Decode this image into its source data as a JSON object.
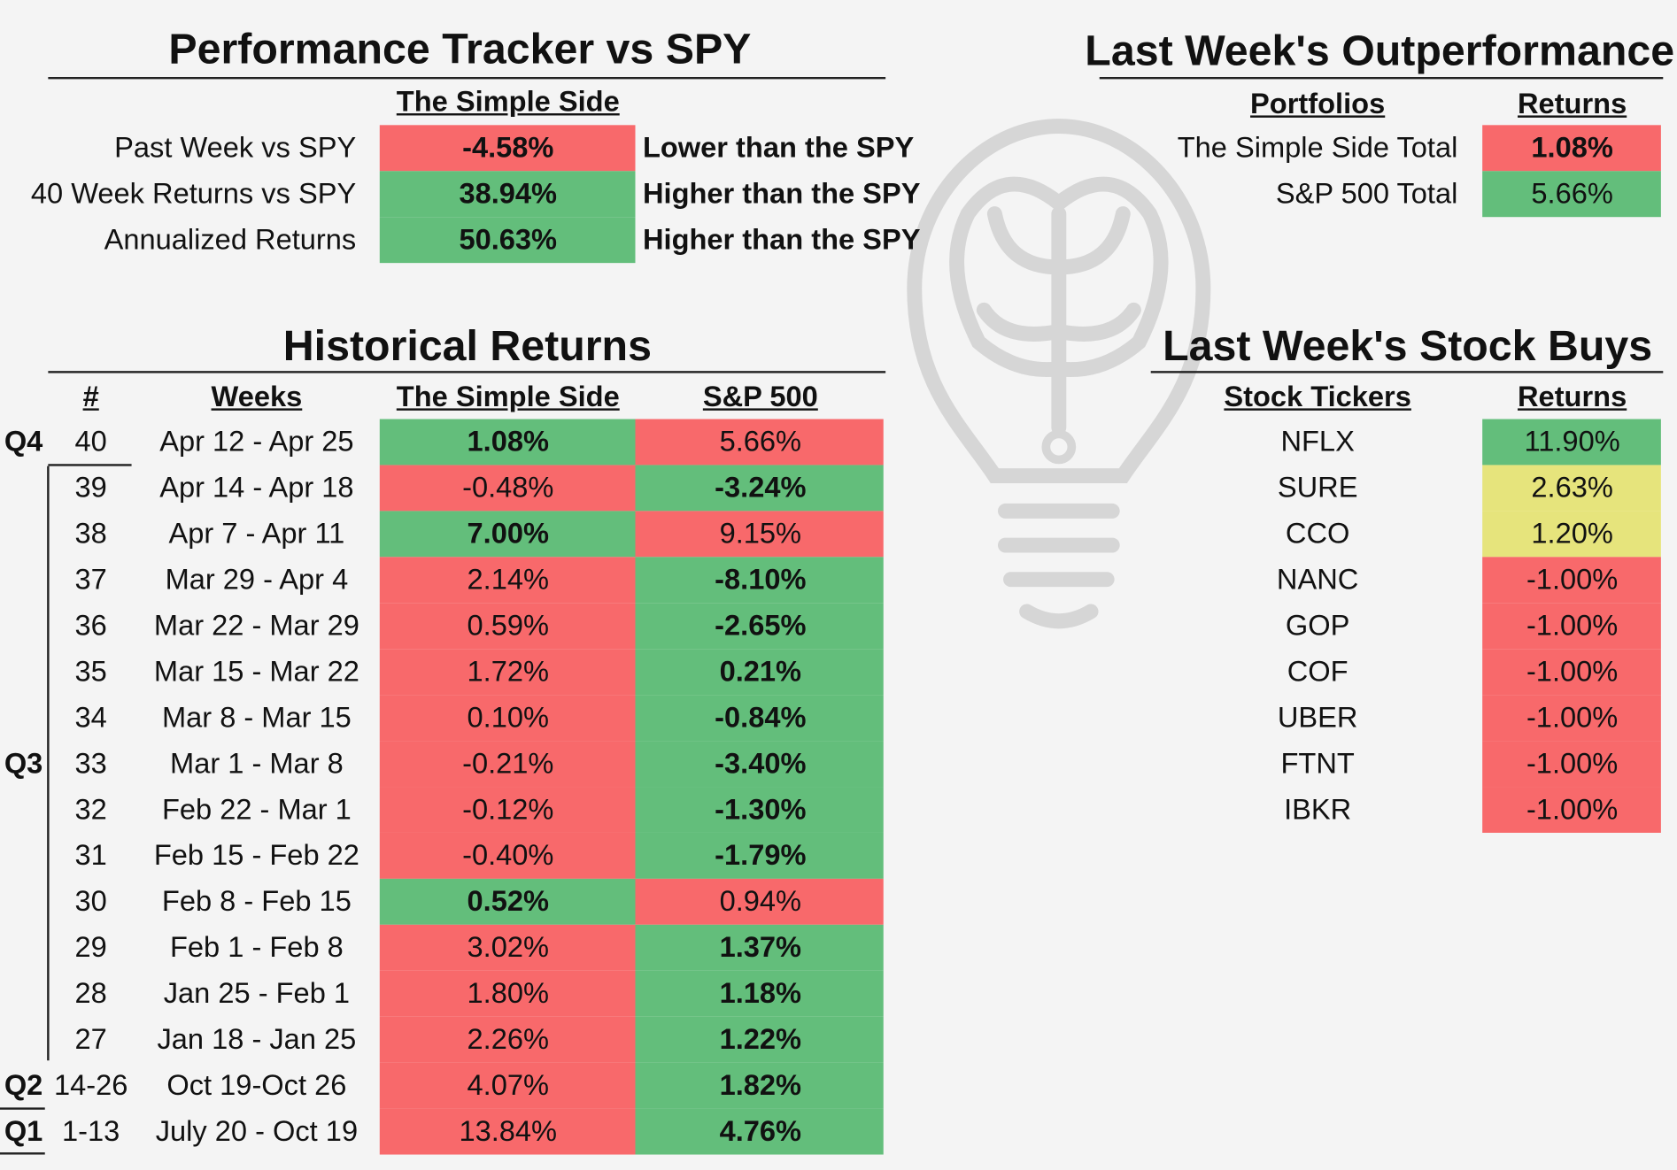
{
  "tracker": {
    "title": "Performance Tracker vs SPY",
    "header": "The Simple Side",
    "rows": [
      {
        "label": "Past Week vs SPY",
        "value": "-4.58%",
        "note": "Lower than the SPY"
      },
      {
        "label": "40 Week Returns vs SPY",
        "value": "38.94%",
        "note": "Higher than the SPY"
      },
      {
        "label": "Annualized Returns",
        "value": "50.63%",
        "note": "Higher than the SPY"
      }
    ]
  },
  "outperformance": {
    "title": "Last Week's Outperformance",
    "headers": [
      "Portfolios",
      "Returns"
    ],
    "rows": [
      [
        "The Simple Side Total",
        "1.08%"
      ],
      [
        "S&P 500 Total",
        "5.66%"
      ]
    ]
  },
  "historical": {
    "title": "Historical Returns",
    "headers": [
      "#",
      "Weeks",
      "The Simple Side",
      "S&P 500"
    ],
    "quarters": [
      {
        "label": "Q4",
        "row": 0
      },
      {
        "label": "Q3",
        "row": 7
      },
      {
        "label": "Q2",
        "row": 14
      },
      {
        "label": "Q1",
        "row": 15
      }
    ],
    "rows": [
      [
        "40",
        "Apr 12 - Apr 25",
        "1.08%",
        "5.66%"
      ],
      [
        "39",
        "Apr 14 - Apr 18",
        "-0.48%",
        "-3.24%"
      ],
      [
        "38",
        "Apr 7 - Apr 11",
        "7.00%",
        "9.15%"
      ],
      [
        "37",
        "Mar 29 - Apr 4",
        "2.14%",
        "-8.10%"
      ],
      [
        "36",
        "Mar 22 - Mar 29",
        "0.59%",
        "-2.65%"
      ],
      [
        "35",
        "Mar 15 - Mar 22",
        "1.72%",
        "0.21%"
      ],
      [
        "34",
        "Mar 8 - Mar 15",
        "0.10%",
        "-0.84%"
      ],
      [
        "33",
        "Mar 1 - Mar 8",
        "-0.21%",
        "-3.40%"
      ],
      [
        "32",
        "Feb 22 - Mar 1",
        "-0.12%",
        "-1.30%"
      ],
      [
        "31",
        "Feb 15 - Feb 22",
        "-0.40%",
        "-1.79%"
      ],
      [
        "30",
        "Feb 8 - Feb 15",
        "0.52%",
        "0.94%"
      ],
      [
        "29",
        "Feb 1 - Feb 8",
        "3.02%",
        "1.37%"
      ],
      [
        "28",
        "Jan 25 - Feb 1",
        "1.80%",
        "1.18%"
      ],
      [
        "27",
        "Jan 18 - Jan 25",
        "2.26%",
        "1.22%"
      ],
      [
        "14-26",
        "Oct 19-Oct 26",
        "4.07%",
        "1.82%"
      ],
      [
        "1-13",
        "July 20 - Oct 19",
        "13.84%",
        "4.76%"
      ]
    ]
  },
  "buys": {
    "title": "Last Week's Stock Buys",
    "headers": [
      "Stock Tickers",
      "Returns"
    ],
    "rows": [
      [
        "NFLX",
        "11.90%"
      ],
      [
        "SURE",
        "2.63%"
      ],
      [
        "CCO",
        "1.20%"
      ],
      [
        "NANC",
        "-1.00%"
      ],
      [
        "GOP",
        "-1.00%"
      ],
      [
        "COF",
        "-1.00%"
      ],
      [
        "UBER",
        "-1.00%"
      ],
      [
        "FTNT",
        "-1.00%"
      ],
      [
        "IBKR",
        "-1.00%"
      ]
    ]
  }
}
